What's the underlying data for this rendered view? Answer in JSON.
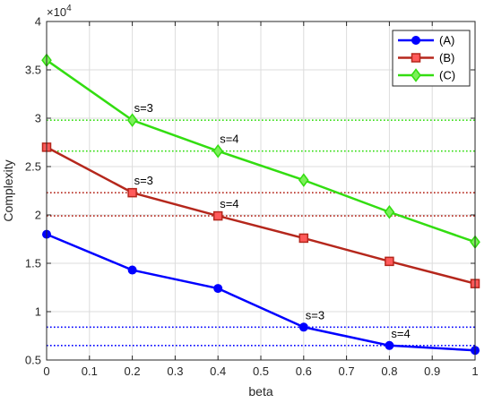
{
  "chart_data": {
    "type": "line",
    "title": "",
    "xlabel": "beta",
    "ylabel": "Complexity",
    "y_exponent_label": "×10",
    "y_exponent_power": "4",
    "xlim": [
      0,
      1
    ],
    "ylim": [
      0.5,
      4
    ],
    "x_ticks": [
      0,
      0.1,
      0.2,
      0.3,
      0.4,
      0.5,
      0.6,
      0.7,
      0.8,
      0.9,
      1
    ],
    "x_tick_labels": [
      "0",
      "0.1",
      "0.2",
      "0.3",
      "0.4",
      "0.5",
      "0.6",
      "0.7",
      "0.8",
      "0.9",
      "1"
    ],
    "y_ticks": [
      0.5,
      1,
      1.5,
      2,
      2.5,
      3,
      3.5,
      4
    ],
    "y_tick_labels": [
      "0.5",
      "1",
      "1.5",
      "2",
      "2.5",
      "3",
      "3.5",
      "4"
    ],
    "grid": true,
    "legend_position": "top-right",
    "x": [
      0,
      0.2,
      0.4,
      0.6,
      0.8,
      1.0
    ],
    "series": [
      {
        "name": "(A)",
        "color": "#0000ff",
        "marker": "circle",
        "values": [
          1.8,
          1.43,
          1.24,
          0.84,
          0.65,
          0.6
        ]
      },
      {
        "name": "(B)",
        "color": "#b5271c",
        "marker": "square",
        "values": [
          2.7,
          2.23,
          1.99,
          1.76,
          1.52,
          1.29
        ]
      },
      {
        "name": "(C)",
        "color": "#33dd11",
        "marker": "diamond",
        "values": [
          3.6,
          2.98,
          2.66,
          2.36,
          2.03,
          1.72
        ]
      }
    ],
    "reference_lines": [
      {
        "y": 2.98,
        "color": "#33dd11"
      },
      {
        "y": 2.66,
        "color": "#33dd11"
      },
      {
        "y": 2.23,
        "color": "#b5271c"
      },
      {
        "y": 1.99,
        "color": "#b5271c"
      },
      {
        "y": 0.84,
        "color": "#0000ff"
      },
      {
        "y": 0.65,
        "color": "#0000ff"
      }
    ],
    "annotations": [
      {
        "text": "s=3",
        "x": 0.2,
        "y": 2.98
      },
      {
        "text": "s=4",
        "x": 0.4,
        "y": 2.66
      },
      {
        "text": "s=3",
        "x": 0.2,
        "y": 2.23
      },
      {
        "text": "s=4",
        "x": 0.4,
        "y": 1.99
      },
      {
        "text": "s=3",
        "x": 0.6,
        "y": 0.84
      },
      {
        "text": "s=4",
        "x": 0.8,
        "y": 0.65
      }
    ]
  }
}
